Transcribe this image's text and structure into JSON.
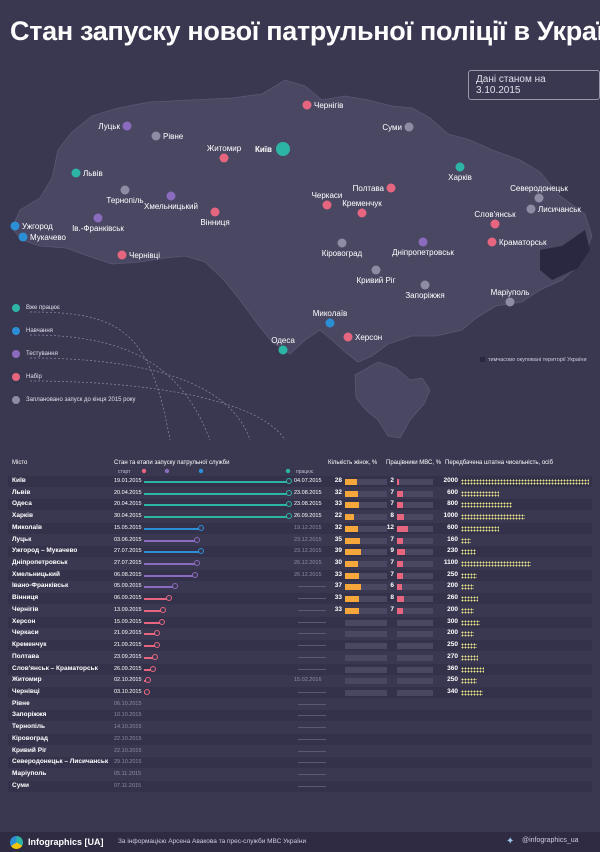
{
  "title": "Стан запуску нової патрульної поліції в Україні",
  "date_note": "Дані станом на 3.10.2015",
  "colors": {
    "works": "#2cb5a5",
    "training": "#2c8fd6",
    "testing": "#8a6bbd",
    "recruiting": "#e6667f",
    "planned": "#8e8ba5",
    "women": "#f5a73b",
    "mvs": "#e6667f",
    "staff": "#e6e28a"
  },
  "legend": [
    {
      "label": "Вже працює",
      "color": "#2cb5a5"
    },
    {
      "label": "Навчання",
      "color": "#2c8fd6"
    },
    {
      "label": "Тестування",
      "color": "#8a6bbd"
    },
    {
      "label": "Набір",
      "color": "#e6667f"
    },
    {
      "label": "Заплановано запуск до кінця 2015 року",
      "color": "#8e8ba5"
    }
  ],
  "occupied_note": "тимчасово окуповані території України",
  "map_cities": [
    {
      "name": "Київ",
      "status": "works"
    },
    {
      "name": "Чернігів",
      "status": "recruiting"
    },
    {
      "name": "Суми",
      "status": "planned"
    },
    {
      "name": "Луцьк",
      "status": "testing"
    },
    {
      "name": "Рівне",
      "status": "planned"
    },
    {
      "name": "Житомир",
      "status": "recruiting"
    },
    {
      "name": "Львів",
      "status": "works"
    },
    {
      "name": "Тернопіль",
      "status": "planned"
    },
    {
      "name": "Хмельницький",
      "status": "testing"
    },
    {
      "name": "Ів.-Франківськ",
      "status": "testing"
    },
    {
      "name": "Ужгород",
      "status": "training"
    },
    {
      "name": "Мукачево",
      "status": "training"
    },
    {
      "name": "Вінниця",
      "status": "recruiting"
    },
    {
      "name": "Чернівці",
      "status": "recruiting"
    },
    {
      "name": "Черкаси",
      "status": "recruiting"
    },
    {
      "name": "Полтава",
      "status": "recruiting"
    },
    {
      "name": "Кременчук",
      "status": "recruiting"
    },
    {
      "name": "Харків",
      "status": "works"
    },
    {
      "name": "Северодонецьк",
      "status": "planned"
    },
    {
      "name": "Лисичанськ",
      "status": "planned"
    },
    {
      "name": "Слов'янськ",
      "status": "recruiting"
    },
    {
      "name": "Краматорськ",
      "status": "recruiting"
    },
    {
      "name": "Кіровоград",
      "status": "planned"
    },
    {
      "name": "Дніпропетровськ",
      "status": "testing"
    },
    {
      "name": "Кривий Ріг",
      "status": "planned"
    },
    {
      "name": "Запоріжжя",
      "status": "planned"
    },
    {
      "name": "Маріуполь",
      "status": "planned"
    },
    {
      "name": "Миколаїв",
      "status": "training"
    },
    {
      "name": "Херсон",
      "status": "recruiting"
    },
    {
      "name": "Одеса",
      "status": "works"
    }
  ],
  "table": {
    "col_city": "Місто",
    "col_timeline": "Стан та етапи запуску патрульної служби",
    "col_start": "старт",
    "col_works": "працює",
    "col_women": "Кількість жінок, %",
    "col_mvs": "Працівники МВС, %",
    "col_staff": "Передбачена штатна чисельність, осіб"
  },
  "chart_data": {
    "type": "table",
    "title": "Стан запуску нової патрульної поліції в Україні",
    "timeline_range": [
      "19.01.2015",
      "26.12.2015"
    ],
    "rows": [
      {
        "city": "Київ",
        "start": "19.01.2015",
        "end": "04.07.2015",
        "status": "works",
        "women": 28,
        "mvs": 2,
        "staff": 2000
      },
      {
        "city": "Львів",
        "start": "20.04.2015",
        "end": "23.08.2015",
        "status": "works",
        "women": 32,
        "mvs": 7,
        "staff": 600
      },
      {
        "city": "Одеса",
        "start": "20.04.2015",
        "end": "23.08.2015",
        "status": "works",
        "women": 33,
        "mvs": 7,
        "staff": 800
      },
      {
        "city": "Харків",
        "start": "30.04.2015",
        "end": "26.09.2015",
        "status": "works",
        "women": 22,
        "mvs": 8,
        "staff": 1000
      },
      {
        "city": "Миколаїв",
        "start": "15.05.2015",
        "end": "19.12.2015",
        "status": "training",
        "women": 32,
        "mvs": 12,
        "staff": 600
      },
      {
        "city": "Луцьк",
        "start": "03.06.2015",
        "end": "23.12.2015",
        "status": "testing",
        "women": 35,
        "mvs": 7,
        "staff": 160
      },
      {
        "city": "Ужгород – Мукачево",
        "start": "27.07.2015",
        "end": "23.12.2015",
        "status": "training",
        "women": 39,
        "mvs": 9,
        "staff": 230
      },
      {
        "city": "Дніпропетровськ",
        "start": "27.07.2015",
        "end": "26.12.2015",
        "status": "testing",
        "women": 30,
        "mvs": 7,
        "staff": 1100
      },
      {
        "city": "Хмельницький",
        "start": "06.08.2015",
        "end": "26.12.2015",
        "status": "testing",
        "women": 33,
        "mvs": 7,
        "staff": 250
      },
      {
        "city": "Івано-Франківськ",
        "start": "05.09.2015",
        "end": "",
        "status": "testing",
        "women": 37,
        "mvs": 6,
        "staff": 200
      },
      {
        "city": "Вінниця",
        "start": "06.09.2015",
        "end": "",
        "status": "recruiting",
        "women": 33,
        "mvs": 8,
        "staff": 260
      },
      {
        "city": "Чернігів",
        "start": "13.09.2015",
        "end": "",
        "status": "recruiting",
        "women": 33,
        "mvs": 7,
        "staff": 200
      },
      {
        "city": "Херсон",
        "start": "15.09.2015",
        "end": "",
        "status": "recruiting",
        "women": null,
        "mvs": null,
        "staff": 300
      },
      {
        "city": "Черкаси",
        "start": "21.09.2015",
        "end": "",
        "status": "recruiting",
        "women": null,
        "mvs": null,
        "staff": 200
      },
      {
        "city": "Кременчук",
        "start": "21.09.2015",
        "end": "",
        "status": "recruiting",
        "women": null,
        "mvs": null,
        "staff": 250
      },
      {
        "city": "Полтава",
        "start": "23.09.2015",
        "end": "",
        "status": "recruiting",
        "women": null,
        "mvs": null,
        "staff": 270
      },
      {
        "city": "Слов'янськ – Краматорськ",
        "start": "26.09.2015",
        "end": "",
        "status": "recruiting",
        "women": null,
        "mvs": null,
        "staff": 360
      },
      {
        "city": "Житомир",
        "start": "02.10.2015",
        "end": "15.02.2016",
        "status": "recruiting",
        "women": null,
        "mvs": null,
        "staff": 250
      },
      {
        "city": "Чернівці",
        "start": "03.10.2015",
        "end": "",
        "status": "recruiting",
        "women": null,
        "mvs": null,
        "staff": 340
      },
      {
        "city": "Рівне",
        "start": "06.10.2015",
        "end": "",
        "status": "planned",
        "women": null,
        "mvs": null,
        "staff": null
      },
      {
        "city": "Запоріжжя",
        "start": "10.10.2015",
        "end": "",
        "status": "planned",
        "women": null,
        "mvs": null,
        "staff": null
      },
      {
        "city": "Тернопіль",
        "start": "14.10.2015",
        "end": "",
        "status": "planned",
        "women": null,
        "mvs": null,
        "staff": null
      },
      {
        "city": "Кіровоград",
        "start": "22.10.2015",
        "end": "",
        "status": "planned",
        "women": null,
        "mvs": null,
        "staff": null
      },
      {
        "city": "Кривий Ріг",
        "start": "22.10.2015",
        "end": "",
        "status": "planned",
        "women": null,
        "mvs": null,
        "staff": null
      },
      {
        "city": "Северодонецьк – Лисичанськ",
        "start": "29.10.2015",
        "end": "",
        "status": "planned",
        "women": null,
        "mvs": null,
        "staff": null
      },
      {
        "city": "Маріуполь",
        "start": "05.11.2015",
        "end": "",
        "status": "planned",
        "women": null,
        "mvs": null,
        "staff": null
      },
      {
        "city": "Суми",
        "start": "07.11.2015",
        "end": "",
        "status": "planned",
        "women": null,
        "mvs": null,
        "staff": null
      }
    ]
  },
  "footer": {
    "brand": "Infographics [UA]",
    "source": "За інформацією Арсена Авакова та прес-служби МВС України",
    "twitter": "@infographics_ua"
  }
}
